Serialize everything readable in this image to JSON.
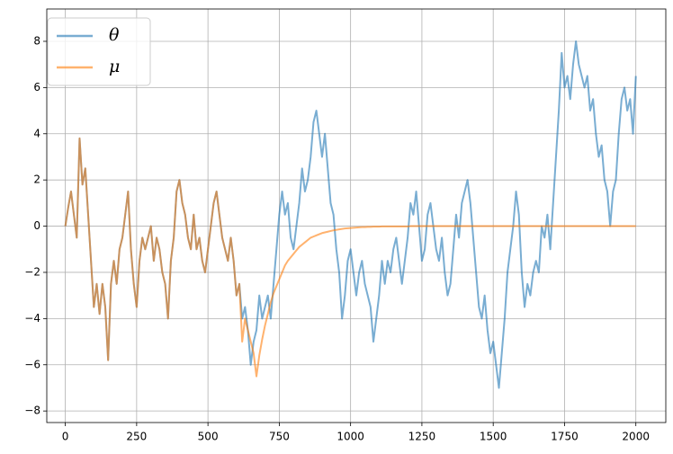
{
  "chart_data": {
    "type": "line",
    "x": [
      0,
      10,
      20,
      30,
      40,
      50,
      60,
      70,
      80,
      90,
      100,
      110,
      120,
      130,
      140,
      150,
      160,
      170,
      180,
      190,
      200,
      210,
      220,
      230,
      240,
      250,
      260,
      270,
      280,
      290,
      300,
      310,
      320,
      330,
      340,
      350,
      360,
      370,
      380,
      390,
      400,
      410,
      420,
      430,
      440,
      450,
      460,
      470,
      480,
      490,
      500,
      510,
      520,
      530,
      540,
      550,
      560,
      570,
      580,
      590,
      600,
      610,
      620,
      630,
      640,
      650,
      660,
      670,
      680,
      690,
      700,
      710,
      720,
      730,
      740,
      750,
      760,
      770,
      780,
      790,
      800,
      810,
      820,
      830,
      840,
      850,
      860,
      870,
      880,
      890,
      900,
      910,
      920,
      930,
      940,
      950,
      960,
      970,
      980,
      990,
      1000,
      1010,
      1020,
      1030,
      1040,
      1050,
      1060,
      1070,
      1080,
      1090,
      1100,
      1110,
      1120,
      1130,
      1140,
      1150,
      1160,
      1170,
      1180,
      1190,
      1200,
      1210,
      1220,
      1230,
      1240,
      1250,
      1260,
      1270,
      1280,
      1290,
      1300,
      1310,
      1320,
      1330,
      1340,
      1350,
      1360,
      1370,
      1380,
      1390,
      1400,
      1410,
      1420,
      1430,
      1440,
      1450,
      1460,
      1470,
      1480,
      1490,
      1500,
      1510,
      1520,
      1530,
      1540,
      1550,
      1560,
      1570,
      1580,
      1590,
      1600,
      1610,
      1620,
      1630,
      1640,
      1650,
      1660,
      1670,
      1680,
      1690,
      1700,
      1710,
      1720,
      1730,
      1740,
      1750,
      1760,
      1770,
      1780,
      1790,
      1800,
      1810,
      1820,
      1830,
      1840,
      1850,
      1860,
      1870,
      1880,
      1890,
      1900,
      1910,
      1920,
      1930,
      1940,
      1950,
      1960,
      1970,
      1980,
      1990,
      2000
    ],
    "series": [
      {
        "name": "θ",
        "color": "#1f77b4",
        "values": [
          0,
          0.8,
          1.5,
          0.5,
          -0.5,
          3.8,
          1.8,
          2.5,
          0.5,
          -1.5,
          -3.5,
          -2.5,
          -3.8,
          -2.5,
          -3.5,
          -5.8,
          -2.5,
          -1.5,
          -2.5,
          -1,
          -0.5,
          0.5,
          1.5,
          -1,
          -2.5,
          -3.5,
          -1.5,
          -0.5,
          -1,
          -0.5,
          0,
          -1.5,
          -0.5,
          -1,
          -2,
          -2.5,
          -4,
          -1.5,
          -0.5,
          1.5,
          2,
          1,
          0.5,
          -0.5,
          -1,
          0.5,
          -1,
          -0.5,
          -1.5,
          -2,
          -1,
          0,
          1,
          1.5,
          0.5,
          -0.5,
          -1,
          -1.5,
          -0.5,
          -1.5,
          -3,
          -2.5,
          -4,
          -3.5,
          -4.5,
          -6,
          -5,
          -4.5,
          -3,
          -4,
          -3.5,
          -3,
          -4,
          -2.5,
          -1,
          0.5,
          1.5,
          0.5,
          1,
          -0.5,
          -1,
          0,
          1,
          2.5,
          1.5,
          2,
          3,
          4.5,
          5,
          4,
          3,
          4,
          2.5,
          1,
          0.5,
          -1,
          -2,
          -4,
          -3,
          -1.5,
          -1,
          -2,
          -3,
          -2,
          -1.5,
          -2.5,
          -3,
          -3.5,
          -5,
          -4,
          -3,
          -1.5,
          -2.5,
          -1.5,
          -2,
          -1,
          -0.5,
          -1.5,
          -2.5,
          -1.5,
          -0.5,
          1,
          0.5,
          1.5,
          0,
          -1.5,
          -1,
          0.5,
          1,
          0,
          -1,
          -1.5,
          -0.5,
          -2,
          -3,
          -2.5,
          -1,
          0.5,
          -0.5,
          1,
          1.5,
          2,
          1,
          -0.5,
          -2,
          -3.5,
          -4,
          -3,
          -4.5,
          -5.5,
          -5,
          -6,
          -7,
          -5.5,
          -4,
          -2,
          -1,
          0,
          1.5,
          0.5,
          -2,
          -3.5,
          -2.5,
          -3,
          -2,
          -1.5,
          -2,
          0,
          -0.5,
          0.5,
          -1,
          1,
          3,
          5,
          7.5,
          6,
          6.5,
          5.5,
          7,
          8,
          7,
          6.5,
          6,
          6.5,
          5,
          5.5,
          4,
          3,
          3.5,
          2,
          1.5,
          0,
          1.5,
          2,
          4,
          5.5,
          6,
          5,
          5.5,
          4,
          6.5
        ]
      },
      {
        "name": "μ",
        "color": "#ff7f0e",
        "values": [
          0,
          0.8,
          1.5,
          0.5,
          -0.5,
          3.8,
          1.8,
          2.5,
          0.5,
          -1.5,
          -3.5,
          -2.5,
          -3.8,
          -2.5,
          -3.5,
          -5.8,
          -2.5,
          -1.5,
          -2.5,
          -1,
          -0.5,
          0.5,
          1.5,
          -1,
          -2.5,
          -3.5,
          -1.5,
          -0.5,
          -1,
          -0.5,
          0,
          -1.5,
          -0.5,
          -1,
          -2,
          -2.5,
          -4,
          -1.5,
          -0.5,
          1.5,
          2,
          1,
          0.5,
          -0.5,
          -1,
          0.5,
          -1,
          -0.5,
          -1.5,
          -2,
          -1,
          0,
          1,
          1.5,
          0.5,
          -0.5,
          -1,
          -1.5,
          -0.5,
          -1.5,
          -3,
          -2.5,
          -5,
          -4,
          -4.5,
          -5,
          -5.5,
          -6.5,
          -5.6,
          -4.9,
          -4.3,
          -3.8,
          -3.3,
          -2.9,
          -2.6,
          -2.3,
          -2,
          -1.7,
          -1.5,
          -1.35,
          -1.2,
          -1.05,
          -0.9,
          -0.8,
          -0.7,
          -0.6,
          -0.5,
          -0.45,
          -0.4,
          -0.35,
          -0.3,
          -0.27,
          -0.24,
          -0.21,
          -0.18,
          -0.16,
          -0.14,
          -0.12,
          -0.1,
          -0.09,
          -0.08,
          -0.07,
          -0.06,
          -0.05,
          -0.04,
          -0.04,
          -0.03,
          -0.03,
          -0.02,
          -0.02,
          -0.02,
          -0.01,
          -0.01,
          -0.01,
          -0.01,
          -0.01,
          -0.01,
          -0.01,
          -0.01,
          -0.01,
          -0.01,
          0,
          0,
          0,
          0,
          0,
          0,
          0,
          0,
          0,
          0,
          0,
          0,
          0,
          0,
          0,
          0,
          0,
          0,
          0,
          0,
          0,
          0,
          0,
          0,
          0,
          0,
          0,
          0,
          0,
          0,
          0,
          0,
          0,
          0,
          0,
          0,
          0,
          0,
          0,
          0,
          0,
          0,
          0,
          0,
          0,
          0,
          0,
          0,
          0,
          0,
          0,
          0,
          0,
          0,
          0,
          0,
          0,
          0,
          0,
          0,
          0,
          0,
          0,
          0,
          0,
          0,
          0,
          0,
          0,
          0,
          0,
          0,
          0,
          0,
          0,
          0,
          0,
          0,
          0,
          0
        ]
      }
    ],
    "xlim": [
      -65,
      2105
    ],
    "ylim": [
      -8.5,
      9.4
    ],
    "xticks": [
      0,
      250,
      500,
      750,
      1000,
      1250,
      1500,
      1750,
      2000
    ],
    "yticks": [
      {
        "value": -8,
        "label": "−8"
      },
      {
        "value": -6,
        "label": "−6"
      },
      {
        "value": -4,
        "label": "−4"
      },
      {
        "value": -2,
        "label": "−2"
      },
      0,
      2,
      4,
      6,
      8
    ],
    "grid": true,
    "legend": "upper left"
  }
}
